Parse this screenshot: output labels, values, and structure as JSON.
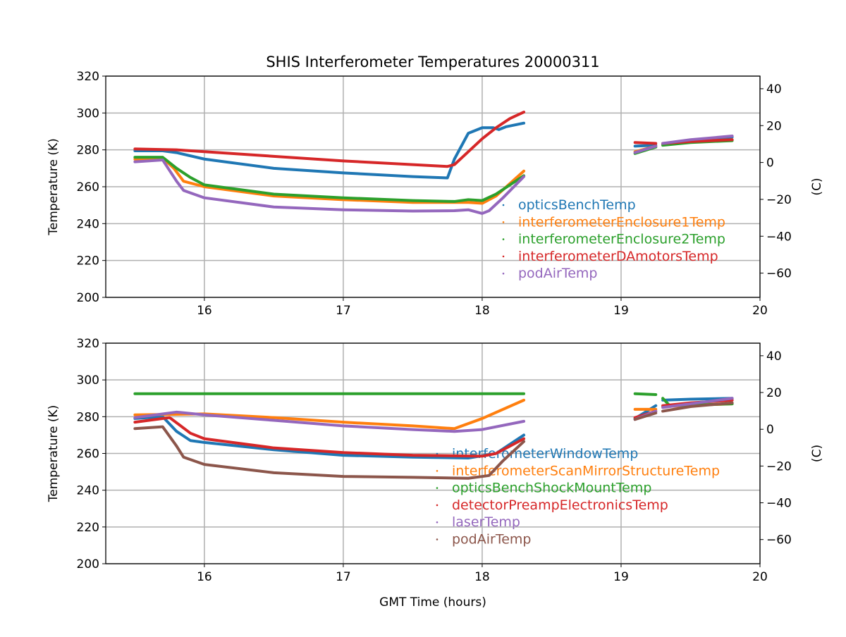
{
  "chart_data": {
    "title": "SHIS Interferometer Temperatures 20000311",
    "xlabel": "GMT Time (hours)",
    "panels": [
      {
        "type": "line",
        "ylabel": "Temperature (K)",
        "ylabel_right": "(C)",
        "xlim": [
          15.29,
          20
        ],
        "ylim": [
          200,
          320
        ],
        "xticks": [
          16,
          17,
          18,
          19,
          20
        ],
        "yticks": [
          200,
          220,
          240,
          260,
          280,
          300,
          320
        ],
        "yticks_right": [
          -60,
          -40,
          -20,
          0,
          20,
          40
        ],
        "grid": true,
        "legend": "center-right",
        "series": [
          {
            "name": "opticsBenchTemp",
            "color": "#1f77b4",
            "segments": [
              [
                [
                  15.5,
                  279.5
                ],
                [
                  15.7,
                  279.5
                ],
                [
                  15.8,
                  278.5
                ],
                [
                  16,
                  275
                ],
                [
                  16.5,
                  270
                ],
                [
                  17,
                  267.5
                ],
                [
                  17.5,
                  265.5
                ],
                [
                  17.75,
                  264.8
                ],
                [
                  17.8,
                  275
                ],
                [
                  17.9,
                  289
                ],
                [
                  18,
                  292
                ],
                [
                  18.08,
                  292
                ],
                [
                  18.12,
                  291
                ],
                [
                  18.17,
                  292.5
                ],
                [
                  18.3,
                  294.5
                ]
              ],
              [
                [
                  19.1,
                  282
                ],
                [
                  19.25,
                  282.5
                ]
              ],
              [
                [
                  19.3,
                  283
                ],
                [
                  19.5,
                  285
                ],
                [
                  19.8,
                  287
                ]
              ]
            ]
          },
          {
            "name": "interferometerEnclosure1Temp",
            "color": "#ff7f0e",
            "segments": [
              [
                [
                  15.5,
                  275
                ],
                [
                  15.7,
                  275.5
                ],
                [
                  15.78,
                  270
                ],
                [
                  15.85,
                  263
                ],
                [
                  16,
                  260
                ],
                [
                  16.5,
                  255
                ],
                [
                  17,
                  253
                ],
                [
                  17.5,
                  251.5
                ],
                [
                  17.9,
                  251.5
                ],
                [
                  18,
                  251
                ],
                [
                  18.1,
                  255
                ],
                [
                  18.3,
                  268.5
                ]
              ],
              [
                [
                  19.1,
                  279
                ],
                [
                  19.25,
                  282
                ]
              ],
              [
                [
                  19.3,
                  283
                ],
                [
                  19.5,
                  284.5
                ],
                [
                  19.8,
                  285.5
                ]
              ]
            ]
          },
          {
            "name": "interferometerEnclosure2Temp",
            "color": "#2ca02c",
            "segments": [
              [
                [
                  15.5,
                  276
                ],
                [
                  15.7,
                  276
                ],
                [
                  15.8,
                  270
                ],
                [
                  15.9,
                  265
                ],
                [
                  16,
                  261
                ],
                [
                  16.5,
                  256
                ],
                [
                  17,
                  254
                ],
                [
                  17.5,
                  252.5
                ],
                [
                  17.8,
                  252
                ],
                [
                  17.9,
                  253
                ],
                [
                  18,
                  252.5
                ],
                [
                  18.1,
                  256
                ],
                [
                  18.3,
                  266
                ]
              ],
              [
                [
                  19.1,
                  278
                ],
                [
                  19.25,
                  281.5
                ]
              ],
              [
                [
                  19.3,
                  282.5
                ],
                [
                  19.5,
                  284
                ],
                [
                  19.8,
                  285
                ]
              ]
            ]
          },
          {
            "name": "interferometerDAmotorsTemp",
            "color": "#d62728",
            "segments": [
              [
                [
                  15.5,
                  280.5
                ],
                [
                  15.8,
                  280
                ],
                [
                  16.5,
                  276.5
                ],
                [
                  17,
                  274
                ],
                [
                  17.5,
                  272
                ],
                [
                  17.75,
                  271
                ],
                [
                  17.8,
                  272
                ],
                [
                  17.9,
                  279
                ],
                [
                  18,
                  286
                ],
                [
                  18.1,
                  292
                ],
                [
                  18.2,
                  297
                ],
                [
                  18.3,
                  300.5
                ]
              ],
              [
                [
                  19.1,
                  284
                ],
                [
                  19.25,
                  283.5
                ]
              ],
              [
                [
                  19.3,
                  283.5
                ],
                [
                  19.5,
                  284.5
                ],
                [
                  19.8,
                  285.5
                ]
              ]
            ]
          },
          {
            "name": "podAirTemp",
            "color": "#9467bd",
            "segments": [
              [
                [
                  15.5,
                  273.5
                ],
                [
                  15.7,
                  274.5
                ],
                [
                  15.8,
                  263
                ],
                [
                  15.85,
                  258
                ],
                [
                  16,
                  254
                ],
                [
                  16.5,
                  249
                ],
                [
                  17,
                  247.5
                ],
                [
                  17.5,
                  246.8
                ],
                [
                  17.8,
                  247
                ],
                [
                  17.9,
                  247.5
                ],
                [
                  18,
                  245.5
                ],
                [
                  18.05,
                  247
                ],
                [
                  18.15,
                  254
                ],
                [
                  18.3,
                  265.5
                ]
              ],
              [
                [
                  19.1,
                  278.5
                ],
                [
                  19.25,
                  282
                ]
              ],
              [
                [
                  19.3,
                  283.5
                ],
                [
                  19.5,
                  285.5
                ],
                [
                  19.8,
                  287.5
                ]
              ]
            ]
          }
        ]
      },
      {
        "type": "line",
        "ylabel": "Temperature (K)",
        "ylabel_right": "(C)",
        "xlim": [
          15.29,
          20
        ],
        "ylim": [
          200,
          320
        ],
        "xticks": [
          16,
          17,
          18,
          19,
          20
        ],
        "yticks": [
          200,
          220,
          240,
          260,
          280,
          300,
          320
        ],
        "yticks_right": [
          -60,
          -40,
          -20,
          0,
          20,
          40
        ],
        "grid": true,
        "legend": "lower-center-right",
        "series": [
          {
            "name": "interferometerWindowTemp",
            "color": "#1f77b4",
            "segments": [
              [
                [
                  15.5,
                  279
                ],
                [
                  15.7,
                  280
                ],
                [
                  15.8,
                  272
                ],
                [
                  15.9,
                  267
                ],
                [
                  16,
                  266
                ],
                [
                  16.5,
                  262
                ],
                [
                  17,
                  259
                ],
                [
                  17.5,
                  258
                ],
                [
                  17.9,
                  257.5
                ],
                [
                  18.1,
                  260
                ],
                [
                  18.3,
                  270
                ]
              ],
              [
                [
                  19.1,
                  279
                ],
                [
                  19.25,
                  286
                ]
              ],
              [
                [
                  19.3,
                  289
                ],
                [
                  19.5,
                  289.5
                ],
                [
                  19.8,
                  290
                ]
              ]
            ]
          },
          {
            "name": "interferometerScanMirrorStructureTemp",
            "color": "#ff7f0e",
            "segments": [
              [
                [
                  15.5,
                  281
                ],
                [
                  16,
                  281.5
                ],
                [
                  16.5,
                  279.5
                ],
                [
                  17,
                  277
                ],
                [
                  17.5,
                  275
                ],
                [
                  17.8,
                  273.5
                ],
                [
                  18,
                  279
                ],
                [
                  18.3,
                  289
                ]
              ],
              [
                [
                  19.1,
                  284
                ],
                [
                  19.25,
                  284
                ]
              ],
              [
                [
                  19.3,
                  285.5
                ],
                [
                  19.8,
                  287
                ]
              ]
            ]
          },
          {
            "name": "opticsBenchShockMountTemp",
            "color": "#2ca02c",
            "segments": [
              [
                [
                  15.5,
                  292.5
                ],
                [
                  18.3,
                  292.5
                ]
              ],
              [
                [
                  19.1,
                  292.5
                ],
                [
                  19.25,
                  292
                ]
              ],
              [
                [
                  19.3,
                  290
                ],
                [
                  19.35,
                  286
                ],
                [
                  19.8,
                  287
                ]
              ]
            ]
          },
          {
            "name": "detectorPreampElectronicsTemp",
            "color": "#d62728",
            "segments": [
              [
                [
                  15.5,
                  277
                ],
                [
                  15.75,
                  279.5
                ],
                [
                  15.9,
                  271
                ],
                [
                  16,
                  268
                ],
                [
                  16.5,
                  263
                ],
                [
                  17,
                  260.5
                ],
                [
                  17.5,
                  259
                ],
                [
                  18,
                  258.5
                ],
                [
                  18.1,
                  260
                ],
                [
                  18.3,
                  268
                ]
              ],
              [
                [
                  19.1,
                  279.5
                ],
                [
                  19.25,
                  283
                ]
              ],
              [
                [
                  19.3,
                  286
                ],
                [
                  19.5,
                  287.5
                ],
                [
                  19.8,
                  289
                ]
              ]
            ]
          },
          {
            "name": "laserTemp",
            "color": "#9467bd",
            "segments": [
              [
                [
                  15.5,
                  279.5
                ],
                [
                  15.8,
                  282.5
                ],
                [
                  16,
                  281
                ],
                [
                  16.5,
                  278
                ],
                [
                  17,
                  275
                ],
                [
                  17.5,
                  273
                ],
                [
                  17.8,
                  272
                ],
                [
                  18,
                  273
                ],
                [
                  18.3,
                  277.5
                ]
              ],
              [
                [
                  19.1,
                  278.5
                ],
                [
                  19.25,
                  283
                ]
              ],
              [
                [
                  19.3,
                  285
                ],
                [
                  19.5,
                  287
                ],
                [
                  19.8,
                  290
                ]
              ]
            ]
          },
          {
            "name": "podAirTemp",
            "color": "#8c564b",
            "segments": [
              [
                [
                  15.5,
                  273.5
                ],
                [
                  15.7,
                  274.5
                ],
                [
                  15.8,
                  264
                ],
                [
                  15.85,
                  258
                ],
                [
                  16,
                  254
                ],
                [
                  16.5,
                  249.5
                ],
                [
                  17,
                  247.5
                ],
                [
                  17.5,
                  247
                ],
                [
                  17.9,
                  246.5
                ],
                [
                  18.05,
                  248
                ],
                [
                  18.15,
                  256
                ],
                [
                  18.3,
                  266.5
                ]
              ],
              [
                [
                  19.1,
                  278.5
                ],
                [
                  19.25,
                  282
                ]
              ],
              [
                [
                  19.3,
                  283
                ],
                [
                  19.5,
                  285.5
                ],
                [
                  19.8,
                  287.5
                ]
              ]
            ]
          }
        ]
      }
    ]
  }
}
